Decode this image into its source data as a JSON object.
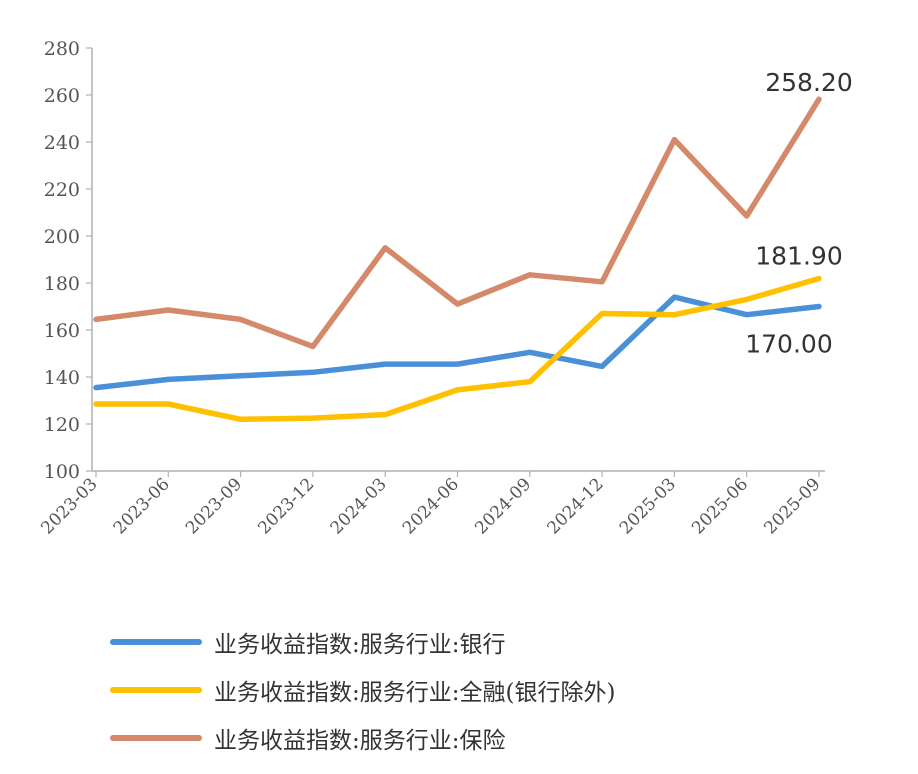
{
  "chart_data": {
    "type": "line",
    "title": "",
    "xlabel": "",
    "ylabel": "",
    "x": [
      "2023-03",
      "2023-06",
      "2023-09",
      "2023-12",
      "2024-03",
      "2024-06",
      "2024-09",
      "2024-12",
      "2025-03",
      "2025-06",
      "2025-09"
    ],
    "ylim": [
      100,
      280
    ],
    "yticks": [
      100,
      120,
      140,
      160,
      180,
      200,
      220,
      240,
      260,
      280
    ],
    "grid": false,
    "legend_position": "bottom",
    "series": [
      {
        "name": "业务收益指数:服务行业:银行",
        "color": "#4a90d9",
        "values": [
          135.5,
          139,
          140.5,
          142,
          145.5,
          145.5,
          150.5,
          144.5,
          174,
          166.5,
          170.0
        ],
        "end_label": "170.00"
      },
      {
        "name": "业务收益指数:服务行业:全融(银行除外)",
        "color": "#ffc000",
        "values": [
          128.5,
          128.5,
          122,
          122.5,
          124,
          134.5,
          138,
          167,
          166.5,
          173,
          181.9
        ],
        "end_label": "181.90"
      },
      {
        "name": "业务收益指数:服务行业:保险",
        "color": "#d4896a",
        "values": [
          164.5,
          168.5,
          164.5,
          153,
          195,
          171,
          183.5,
          180.5,
          241,
          208.5,
          258.2
        ],
        "end_label": "258.20"
      }
    ]
  }
}
